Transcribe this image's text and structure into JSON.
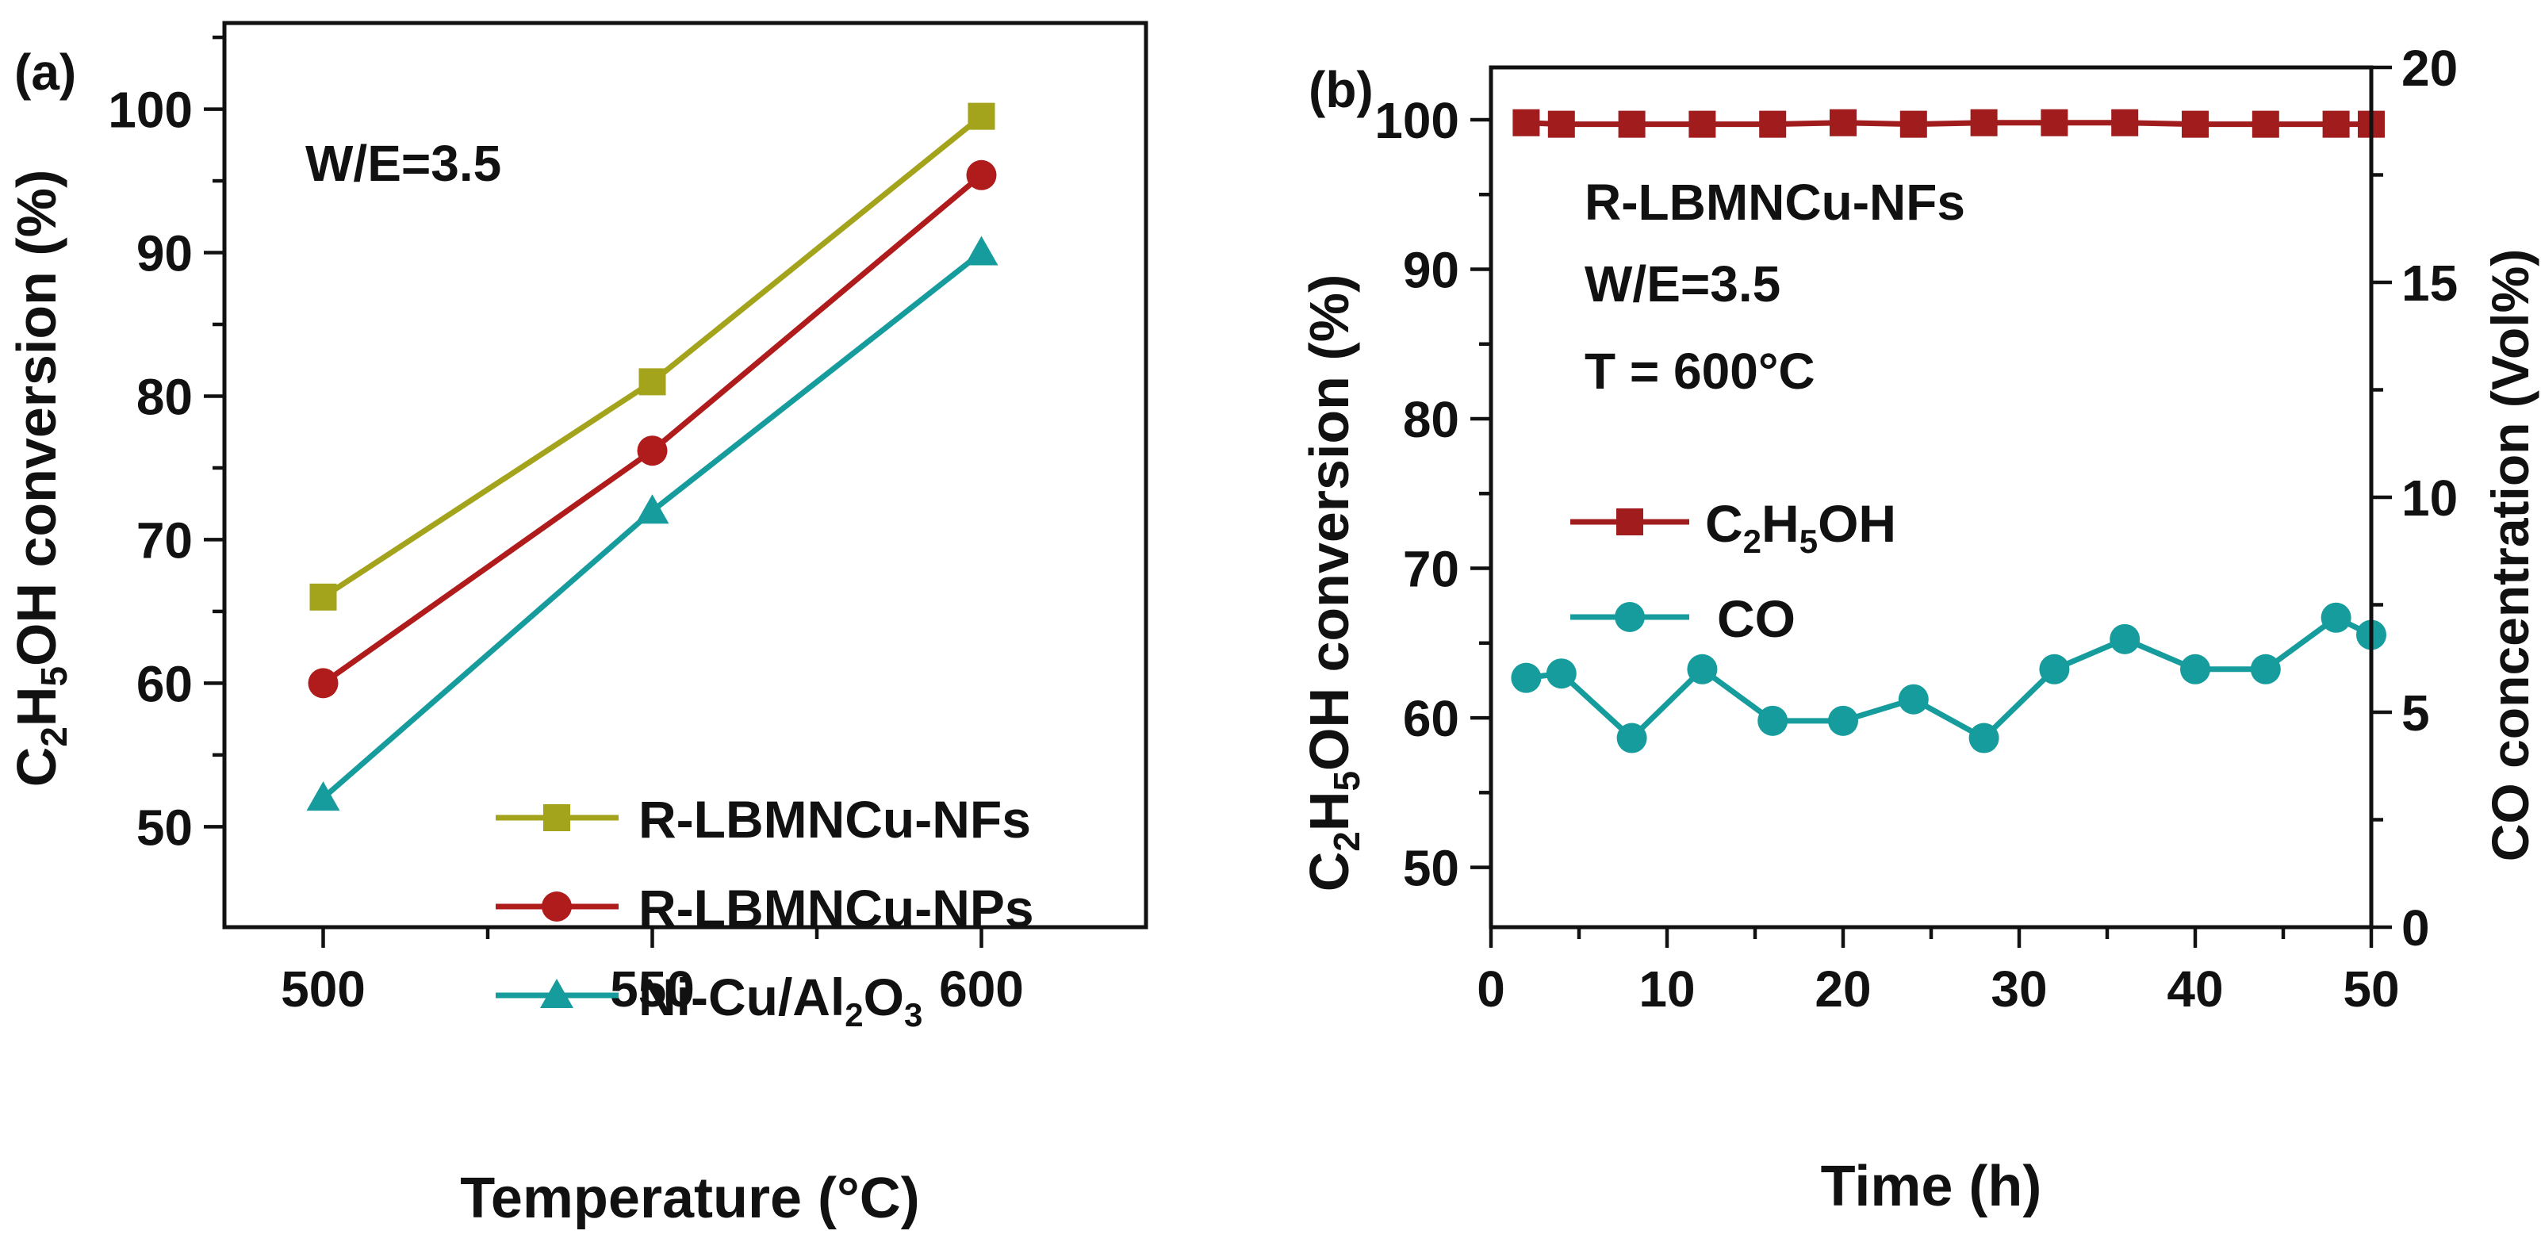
{
  "chart_data": [
    {
      "type": "line",
      "panel_label": "(a)",
      "annotation": "W/E=3.5",
      "xlabel": "Temperature (°C)",
      "ylabel": {
        "prefix": "C",
        "sub1": "2",
        "mid": "H",
        "sub2": "5",
        "suffix": "OH conversion (%)"
      },
      "xlim": [
        485,
        625
      ],
      "ylim": [
        43,
        106
      ],
      "xticks": [
        500,
        550,
        600
      ],
      "yticks": [
        50,
        60,
        70,
        80,
        90,
        100
      ],
      "legend_position": "bottom-right",
      "series": [
        {
          "name": "R-LBMNCu-NFs",
          "legend_label": {
            "text": "R-LBMNCu-NFs"
          },
          "color": "#a3a31c",
          "marker": "square",
          "x": [
            500,
            550,
            600
          ],
          "y": [
            66,
            81,
            99.5
          ]
        },
        {
          "name": "R-LBMNCu-NPs",
          "legend_label": {
            "text": "R-LBMNCu-NPs"
          },
          "color": "#b01c1c",
          "marker": "circle",
          "x": [
            500,
            550,
            600
          ],
          "y": [
            60,
            76.2,
            95.4
          ]
        },
        {
          "name": "Ni-Cu/Al2O3",
          "legend_label": {
            "a": "Ni-Cu/Al",
            "s1": "2",
            "b": "O",
            "s2": "3"
          },
          "color": "#169c9c",
          "marker": "triangle",
          "x": [
            500,
            550,
            600
          ],
          "y": [
            52,
            72,
            90
          ]
        }
      ]
    },
    {
      "type": "line",
      "panel_label": "(b)",
      "annotations": [
        "R-LBMNCu-NFs",
        "W/E=3.5",
        "T = 600°C"
      ],
      "xlabel": "Time (h)",
      "ylabel_left": {
        "prefix": "C",
        "sub1": "2",
        "mid": "H",
        "sub2": "5",
        "suffix": "OH conversion (%)"
      },
      "ylabel_right": "CO concentration (Vol%)",
      "xlim": [
        0,
        50
      ],
      "ylim_left": [
        46,
        103.5
      ],
      "ylim_right": [
        0,
        20
      ],
      "xticks": [
        0,
        10,
        20,
        30,
        40,
        50
      ],
      "yticks_left": [
        50,
        60,
        70,
        80,
        90,
        100
      ],
      "yticks_right": [
        0,
        5,
        10,
        15,
        20
      ],
      "legend_position": "middle-left",
      "series": [
        {
          "name": "C2H5OH",
          "legend_label": {
            "a": "C",
            "s1": "2",
            "b": "H",
            "s2": "5",
            "c": "OH"
          },
          "axis": "left",
          "color": "#a11c1c",
          "marker": "square",
          "x": [
            2,
            4,
            8,
            12,
            16,
            20,
            24,
            28,
            32,
            36,
            40,
            44,
            48,
            50
          ],
          "y": [
            99.8,
            99.7,
            99.7,
            99.7,
            99.7,
            99.8,
            99.7,
            99.8,
            99.8,
            99.8,
            99.7,
            99.7,
            99.7,
            99.7
          ]
        },
        {
          "name": "CO",
          "legend_label": {
            "text": "CO"
          },
          "axis": "right",
          "color": "#169c9c",
          "marker": "circle",
          "x": [
            2,
            4,
            8,
            12,
            16,
            20,
            24,
            28,
            32,
            36,
            40,
            44,
            48,
            50
          ],
          "y": [
            5.8,
            5.9,
            4.4,
            6.0,
            4.8,
            4.8,
            5.3,
            4.4,
            6.0,
            6.7,
            6.0,
            6.0,
            7.2,
            6.8
          ]
        }
      ]
    }
  ]
}
